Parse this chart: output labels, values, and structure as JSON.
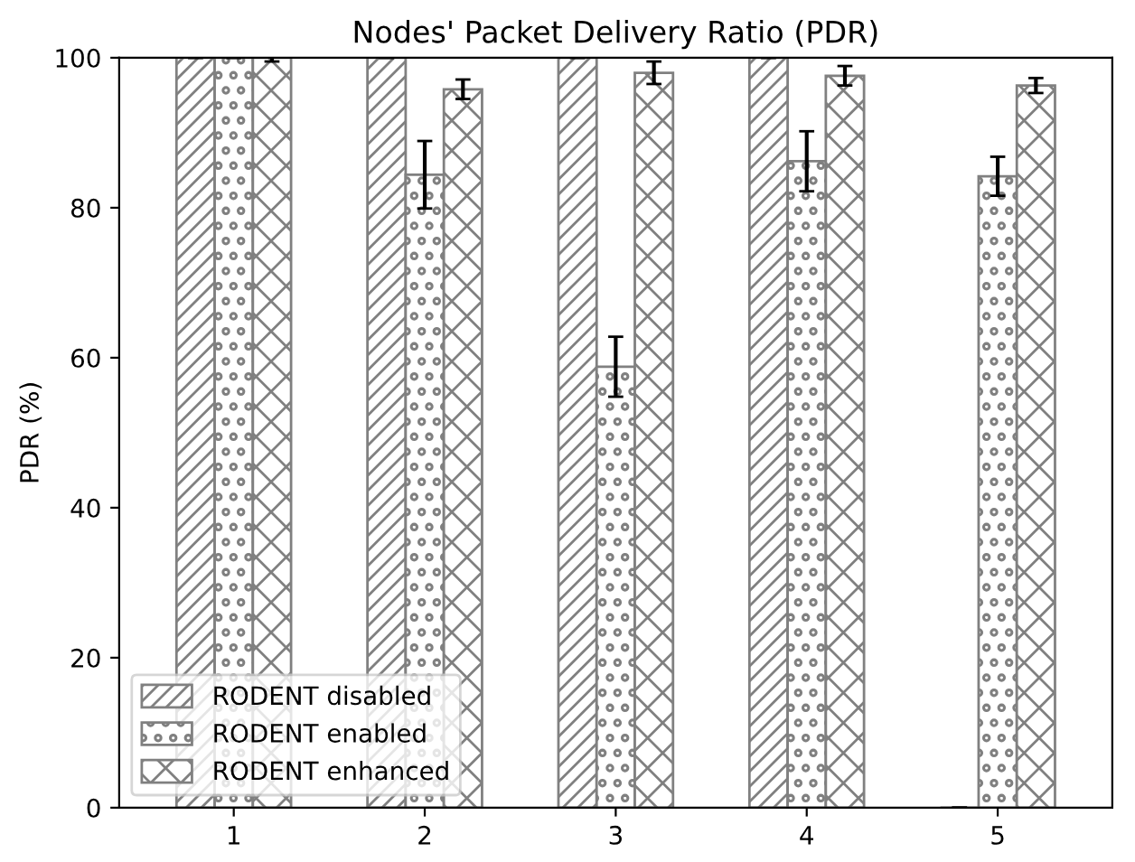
{
  "chart_data": {
    "type": "bar",
    "title": "Nodes' Packet Delivery Ratio (PDR)",
    "ylabel": "PDR (%)",
    "categories": [
      "1",
      "2",
      "3",
      "4",
      "5"
    ],
    "series": [
      {
        "name": "RODENT disabled",
        "color": "#808080",
        "values": [
          100,
          100,
          100,
          100,
          0
        ],
        "errors": [
          0,
          0,
          0,
          0,
          0
        ]
      },
      {
        "name": "RODENT enabled",
        "color": "#808080",
        "values": [
          100,
          84.4,
          58.8,
          86.2,
          84.2
        ],
        "errors": [
          0,
          4.5,
          4,
          4,
          2.6
        ]
      },
      {
        "name": "RODENT enhanced",
        "color": "#808080",
        "values": [
          100,
          95.8,
          98,
          97.6,
          96.3
        ],
        "errors": [
          0.5,
          1.3,
          1.5,
          1.3,
          1
        ]
      }
    ],
    "ylim": [
      0,
      100
    ],
    "yticks": [
      0,
      20,
      40,
      60,
      80,
      100
    ],
    "grid": false,
    "legend": "bottom left"
  }
}
